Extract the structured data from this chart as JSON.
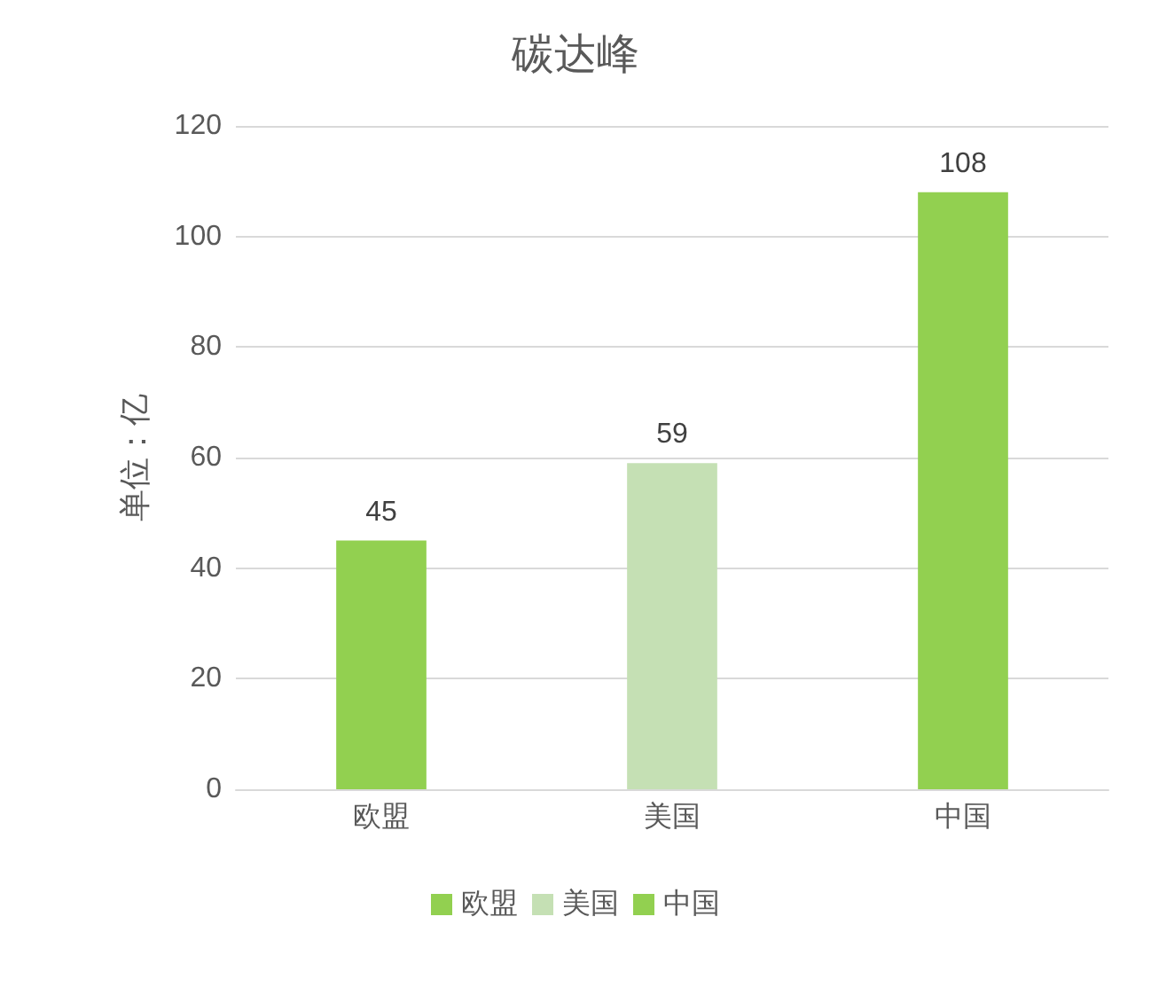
{
  "chart_data": {
    "type": "bar",
    "title": "碳达峰",
    "ylabel": "单位：亿",
    "categories": [
      "欧盟",
      "美国",
      "中国"
    ],
    "series": [
      {
        "name": "欧盟",
        "color": "#92d050",
        "values": [
          45,
          null,
          null
        ]
      },
      {
        "name": "美国",
        "color": "#c5e0b4",
        "values": [
          null,
          59,
          null
        ]
      },
      {
        "name": "中国",
        "color": "#92d050",
        "values": [
          null,
          null,
          108
        ]
      }
    ],
    "ylim": [
      0,
      120
    ],
    "yticks": [
      0,
      20,
      40,
      60,
      80,
      100,
      120
    ],
    "grid": "y",
    "legend": "bottom",
    "data_labels": true
  }
}
